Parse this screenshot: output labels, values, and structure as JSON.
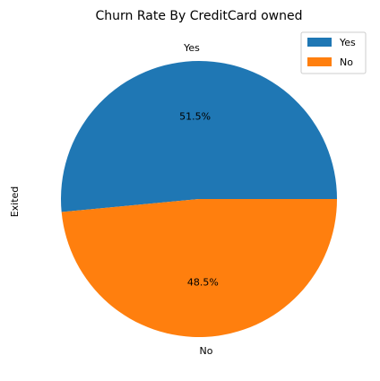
{
  "chart_data": {
    "type": "pie",
    "title": "Churn Rate By CreditCard owned",
    "ylabel": "Exited",
    "labels": [
      "Yes",
      "No"
    ],
    "percentages": [
      51.5,
      48.5
    ],
    "percent_labels": [
      "51.5%",
      "48.5%"
    ],
    "legend": {
      "placement": "top-right",
      "entries": [
        "Yes",
        "No"
      ]
    },
    "colors": [
      "#1f77b4",
      "#ff7f0e"
    ]
  }
}
